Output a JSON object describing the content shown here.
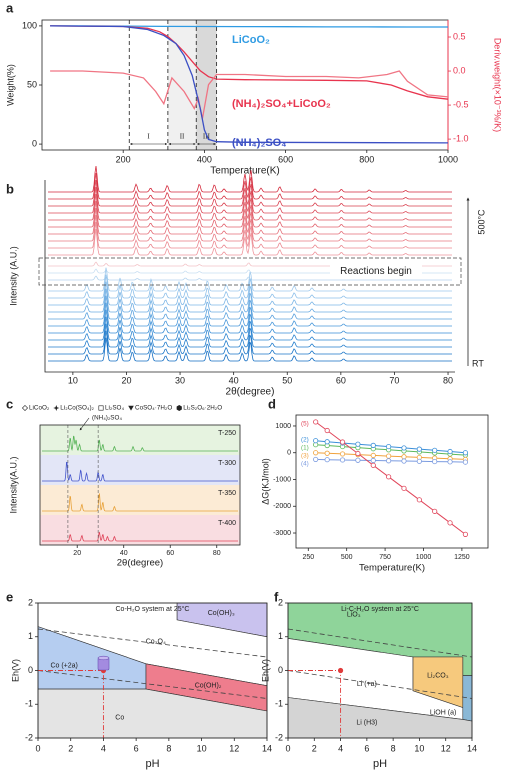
{
  "chart_data": [
    {
      "type": "tga",
      "label": "a",
      "xlabel": "Temperature(K)",
      "ylabel": "Weight(%)",
      "y2label": "Deriv.weight(×10⁻³%/K)",
      "xlim": [
        0,
        1000
      ],
      "xticks": [
        200,
        400,
        600,
        800,
        1000
      ],
      "ylim": [
        -5,
        105
      ],
      "yticks": [
        0,
        50,
        100
      ],
      "y2lim": [
        -1.16,
        0.75
      ],
      "y2ticks": [
        0.5,
        {
          "value": 0,
          "label": "0.0"
        },
        -0.5,
        {
          "value": -1,
          "label": "-1.0"
        }
      ],
      "boundaries": [
        215,
        310,
        380,
        430
      ],
      "regions": [
        "I",
        "II",
        "III"
      ],
      "series": [
        {
          "name": "LiCoO₂",
          "color": "#2f9be3",
          "x": [
            20,
            100,
            200,
            300,
            400,
            500,
            600,
            700,
            800,
            900,
            1000
          ],
          "values": [
            100,
            100,
            99.8,
            99.6,
            99.5,
            99.4,
            99.3,
            99.2,
            99.2,
            99.1,
            99.1
          ]
        },
        {
          "name": "(NH₄)₂SO₄+LiCoO₂",
          "color": "#e8344e",
          "x": [
            20,
            200,
            260,
            290,
            310,
            330,
            350,
            370,
            390,
            410,
            430,
            500,
            700,
            800,
            860,
            900,
            950,
            1000
          ],
          "values": [
            100,
            99.5,
            98,
            95,
            91,
            85,
            78,
            70,
            62,
            57,
            55,
            54.5,
            54,
            53.5,
            50,
            45,
            40,
            38
          ]
        },
        {
          "color": "#f07584",
          "axis": "y2",
          "x": [
            20,
            100,
            200,
            250,
            280,
            300,
            320,
            350,
            375,
            385,
            395,
            410,
            430,
            500,
            600,
            700,
            780,
            850,
            880,
            900,
            950,
            1000
          ],
          "values": [
            0,
            0,
            -0.03,
            -0.1,
            -0.3,
            -0.48,
            -0.1,
            -0.3,
            -0.55,
            -0.4,
            -0.7,
            -0.2,
            -0.05,
            -0.05,
            -0.08,
            -0.08,
            -0.1,
            -0.05,
            0,
            -0.15,
            -0.35,
            -0.38
          ]
        },
        {
          "name": "(NH₄)₂SO₄",
          "color": "#3b4fc4",
          "x": [
            20,
            200,
            260,
            300,
            330,
            350,
            370,
            390,
            400,
            410,
            430,
            500,
            1000
          ],
          "values": [
            100,
            99.5,
            97,
            92,
            85,
            75,
            58,
            30,
            12,
            4,
            2,
            1.5,
            1
          ]
        }
      ]
    },
    {
      "type": "xrd_stack",
      "label": "b",
      "xlabel": "2θ(degree)",
      "ylabel": "Intensity (A.U.)",
      "xlim": [
        4.8,
        81.3
      ],
      "xticks": [
        10,
        20,
        30,
        40,
        50,
        60,
        70,
        80
      ],
      "top_label": "500°C",
      "bottom_label": "RT",
      "annotation": "Reactions begin",
      "patterns": [
        {
          "colors": [
            "#d42a3c",
            "#d63545",
            "#d9404f",
            "#dc4b59",
            "#df5763",
            "#e2636e",
            "#e56f79",
            "#e87b84",
            "#eb8890",
            "#ee959c"
          ],
          "peak_x": [
            14.3,
            21.8,
            24.5,
            27.6,
            33.6,
            36.4,
            38.2,
            42.1,
            43.2,
            45.1,
            48.6,
            55.2,
            60.1,
            65.3,
            72.1
          ],
          "peak_h": [
            1,
            0.3,
            0.15,
            0.25,
            0.3,
            0.28,
            0.12,
            0.7,
            0.85,
            0.15,
            0.2,
            0.12,
            0.1,
            0.08,
            0.06
          ]
        },
        {
          "colors": [
            "#f3c4c8",
            "#c9dff2",
            "#b5d4ef"
          ],
          "peak_x": [
            14.3,
            16.2,
            22,
            31,
            33.6,
            42.8
          ],
          "peak_h": [
            0.15,
            0.1,
            0.06,
            0.08,
            0.06,
            0.12
          ]
        },
        {
          "colors": [
            "#9fc9ec",
            "#8ec0ea",
            "#7db6e6",
            "#6cace2",
            "#5ba2de",
            "#4a98da",
            "#3a8ed6",
            "#2e86d2",
            "#247ecd",
            "#1b76c8",
            "#136ec3"
          ],
          "peak_x": [
            12.6,
            16.2,
            18.8,
            21.1,
            24.6,
            27.3,
            29.8,
            31.1,
            35.1,
            38.6,
            41.6,
            43.1,
            47.2,
            51.3,
            54.6,
            60.5
          ],
          "peak_h": [
            0.25,
            0.9,
            0.5,
            0.35,
            0.45,
            0.2,
            0.35,
            0.3,
            0.4,
            0.25,
            0.3,
            0.75,
            0.15,
            0.2,
            0.12,
            0.08
          ]
        }
      ]
    },
    {
      "type": "xrd_panels",
      "label": "c",
      "xlabel": "2θ(degree)",
      "ylabel": "Intensity(A.U.)",
      "xlim": [
        4,
        90
      ],
      "xticks": [
        20,
        40,
        60,
        80
      ],
      "legend": [
        "LiCoO₂",
        "Li₂Co(SO₄)₂",
        "Li₂SO₄",
        "CoSO₄·7H₂O",
        "Li₂S₂O₆·2H₂O"
      ],
      "annotation": "(NH₄)₂SO₄",
      "guides": [
        16,
        29
      ],
      "series": [
        {
          "name": "T-250",
          "color": "#56b356",
          "band": "#e6f3e0",
          "peak_x": [
            17,
            18.5,
            19.5,
            21,
            29.5,
            31,
            36,
            44,
            48
          ],
          "peak_h": [
            0.6,
            0.7,
            0.5,
            0.3,
            0.5,
            0.3,
            0.2,
            0.2,
            0.15
          ]
        },
        {
          "name": "T-300",
          "color": "#4455cc",
          "band": "#e3e6f7",
          "peak_x": [
            15.5,
            17,
            21.5,
            24,
            29,
            31
          ],
          "peak_h": [
            0.9,
            0.3,
            0.5,
            0.35,
            0.4,
            0.3
          ]
        },
        {
          "name": "T-350",
          "color": "#e8a23a",
          "band": "#fcebd5",
          "peak_x": [
            17,
            22,
            29.5,
            31,
            36
          ],
          "peak_h": [
            0.7,
            0.3,
            0.8,
            0.4,
            0.2
          ]
        },
        {
          "name": "T-400",
          "color": "#e0455a",
          "band": "#f9dde1",
          "peak_x": [
            17,
            22,
            29.5,
            31,
            33,
            36
          ],
          "peak_h": [
            0.3,
            0.25,
            0.4,
            0.3,
            0.2,
            0.2
          ]
        }
      ]
    },
    {
      "type": "line",
      "label": "d",
      "xlabel": "Temperature(K)",
      "ylabel": "ΔG(KJ/mol)",
      "xlim": [
        170,
        1420
      ],
      "xticks": [
        250,
        500,
        750,
        1000,
        1250
      ],
      "ylim": [
        -3560,
        1410
      ],
      "yticks": [
        1000,
        0,
        -1000,
        -2000,
        -3000
      ],
      "x": [
        298,
        373,
        473,
        573,
        673,
        773,
        873,
        973,
        1073,
        1173,
        1273
      ],
      "series": [
        {
          "name": "(1)",
          "color": "#5cb85c",
          "values": [
            300,
            270,
            230,
            190,
            150,
            110,
            70,
            30,
            -10,
            -50,
            -90
          ]
        },
        {
          "name": "(2)",
          "color": "#3b8fd9",
          "values": [
            450,
            410,
            365,
            320,
            275,
            230,
            180,
            135,
            90,
            45,
            0
          ]
        },
        {
          "name": "(3)",
          "color": "#f0a23c",
          "values": [
            0,
            -20,
            -45,
            -70,
            -100,
            -125,
            -150,
            -175,
            -200,
            -225,
            -250
          ]
        },
        {
          "name": "(4)",
          "color": "#7b9be0",
          "values": [
            -250,
            -260,
            -270,
            -280,
            -290,
            -300,
            -310,
            -320,
            -330,
            -340,
            -350
          ]
        },
        {
          "name": "(5)",
          "color": "#e0455a",
          "values": [
            1150,
            830,
            400,
            -30,
            -470,
            -900,
            -1330,
            -1760,
            -2190,
            -2620,
            -3050
          ]
        }
      ]
    },
    {
      "type": "pourbaix",
      "label": "e",
      "title": "Co-H₂O system at 25°C",
      "xlabel": "pH",
      "ylabel": "Eh(V)",
      "xlim": [
        0,
        14
      ],
      "xticks": [
        0,
        2,
        4,
        6,
        8,
        10,
        12,
        14
      ],
      "ylim": [
        -2,
        2
      ],
      "yticks": [
        -2,
        -1,
        0,
        1,
        2
      ],
      "regions": [
        {
          "name": "Co(OH)₃",
          "color": "#c9c2ee",
          "boundary": [
            [
              8.5,
              2
            ],
            [
              14,
              2
            ],
            [
              14,
              1.0
            ],
            [
              8.5,
              1.5
            ]
          ]
        },
        {
          "name": "Co₃O₄",
          "color": "#ffffff",
          "boundary": [
            [
              0,
              2
            ],
            [
              8.5,
              2
            ],
            [
              8.5,
              1.5
            ],
            [
              14,
              1.0
            ],
            [
              14,
              -0.45
            ],
            [
              6.6,
              0.2
            ],
            [
              0,
              1.3
            ]
          ]
        },
        {
          "name": "Co (+2a)",
          "color": "#b5cdf0",
          "boundary": [
            [
              0,
              1.3
            ],
            [
              6.6,
              0.2
            ],
            [
              6.6,
              -0.55
            ],
            [
              0,
              -0.55
            ]
          ]
        },
        {
          "name": "Co(OH)₂",
          "color": "#ee7d8d",
          "boundary": [
            [
              6.6,
              0.2
            ],
            [
              14,
              -0.45
            ],
            [
              14,
              -1.2
            ],
            [
              6.6,
              -0.55
            ]
          ]
        },
        {
          "name": "Co",
          "color": "#e4e4e4",
          "boundary": [
            [
              0,
              -0.55
            ],
            [
              6.6,
              -0.55
            ],
            [
              14,
              -1.2
            ],
            [
              14,
              -2
            ],
            [
              0,
              -2
            ]
          ]
        }
      ],
      "dashed_lines": [
        [
          [
            0,
            1.23
          ],
          [
            14,
            0.4
          ]
        ],
        [
          [
            0,
            0
          ],
          [
            14,
            -0.83
          ]
        ]
      ],
      "point": [
        4,
        0
      ]
    },
    {
      "type": "pourbaix",
      "label": "f",
      "title": "Li-C-H₂O system at 25°C",
      "xlabel": "pH",
      "ylabel": "Eh(V)",
      "xlim": [
        0,
        14
      ],
      "xticks": [
        0,
        2,
        4,
        6,
        8,
        10,
        12,
        14
      ],
      "ylim": [
        -2,
        2
      ],
      "yticks": [
        -2,
        -1,
        0,
        1,
        2
      ],
      "regions": [
        {
          "name": "LiO₃",
          "color": "#8fd49a",
          "boundary": [
            [
              0,
              2
            ],
            [
              14,
              2
            ],
            [
              14,
              -0.15
            ],
            [
              13.3,
              -0.15
            ],
            [
              13.3,
              0.4
            ],
            [
              9.5,
              0.4
            ],
            [
              0,
              0.95
            ]
          ]
        },
        {
          "name": "Li₂CO₃",
          "color": "#f6c97d",
          "boundary": [
            [
              9.5,
              0.4
            ],
            [
              13.3,
              0.4
            ],
            [
              13.3,
              -1.1
            ],
            [
              9.5,
              -0.6
            ]
          ]
        },
        {
          "name": "Li (+a)",
          "color": "#ffffff",
          "boundary": [
            [
              0,
              0.95
            ],
            [
              9.5,
              0.4
            ],
            [
              9.5,
              -0.6
            ],
            [
              13.3,
              -1.1
            ],
            [
              13.3,
              -1.45
            ],
            [
              0,
              -0.8
            ]
          ]
        },
        {
          "name": "LiOH (a)",
          "color": "#8ab8d6",
          "boundary": [
            [
              13.3,
              -0.15
            ],
            [
              14,
              -0.15
            ],
            [
              14,
              -1.5
            ],
            [
              13.3,
              -1.45
            ]
          ]
        },
        {
          "name": "Li (H3)",
          "color": "#d4d4d4",
          "boundary": [
            [
              0,
              -0.8
            ],
            [
              13.3,
              -1.45
            ],
            [
              14,
              -1.5
            ],
            [
              14,
              -2
            ],
            [
              0,
              -2
            ]
          ]
        }
      ],
      "dashed_lines": [
        [
          [
            0,
            1.23
          ],
          [
            14,
            0.4
          ]
        ],
        [
          [
            0,
            0
          ],
          [
            14,
            -0.83
          ]
        ]
      ],
      "point": [
        4,
        0
      ]
    }
  ]
}
